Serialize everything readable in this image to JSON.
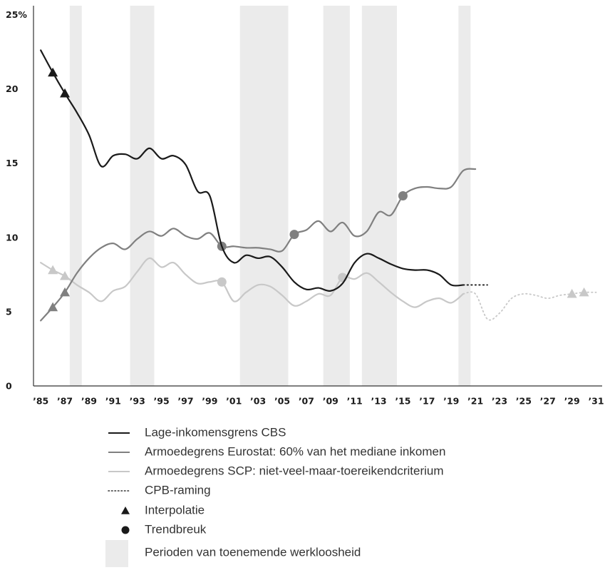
{
  "chart_data": {
    "type": "line",
    "xlim": [
      1984.4,
      2031.5
    ],
    "xticks": [
      {
        "value": 1985,
        "label": "’85"
      },
      {
        "value": 1987,
        "label": "’87"
      },
      {
        "value": 1989,
        "label": "’89"
      },
      {
        "value": 1991,
        "label": "’91"
      },
      {
        "value": 1993,
        "label": "’93"
      },
      {
        "value": 1995,
        "label": "’95"
      },
      {
        "value": 1997,
        "label": "’97"
      },
      {
        "value": 1999,
        "label": "’99"
      },
      {
        "value": 2001,
        "label": "’01"
      },
      {
        "value": 2003,
        "label": "’03"
      },
      {
        "value": 2005,
        "label": "’05"
      },
      {
        "value": 2007,
        "label": "’07"
      },
      {
        "value": 2009,
        "label": "’09"
      },
      {
        "value": 2011,
        "label": "’11"
      },
      {
        "value": 2013,
        "label": "’13"
      },
      {
        "value": 2015,
        "label": "’15"
      },
      {
        "value": 2017,
        "label": "’17"
      },
      {
        "value": 2019,
        "label": "’19"
      },
      {
        "value": 2021,
        "label": "’21"
      },
      {
        "value": 2023,
        "label": "’23"
      },
      {
        "value": 2025,
        "label": "’25"
      },
      {
        "value": 2027,
        "label": "’27"
      },
      {
        "value": 2029,
        "label": "’29"
      },
      {
        "value": 2031,
        "label": "’31"
      }
    ],
    "ylim": [
      0,
      25.6
    ],
    "yticks": [
      0,
      5,
      10,
      15,
      20,
      {
        "value": 25,
        "label": "25%"
      }
    ],
    "shading": {
      "name": "Perioden van toenemende werkloosheid",
      "color": "#ebebeb",
      "periods": [
        [
          1987.4,
          1988.4
        ],
        [
          1992.4,
          1994.4
        ],
        [
          2001.5,
          2005.5
        ],
        [
          2008.4,
          2010.6
        ],
        [
          2011.6,
          2014.5
        ],
        [
          2019.6,
          2020.6
        ]
      ]
    },
    "series": [
      {
        "name": "Lage-inkomensgrens CBS",
        "color": "#1a1a1a",
        "x": [
          1985,
          1986,
          1987,
          1988,
          1989,
          1990,
          1991,
          1992,
          1993,
          1994,
          1995,
          1996,
          1997,
          1998,
          1999,
          2000,
          2001,
          2002,
          2003,
          2004,
          2005,
          2006,
          2007,
          2008,
          2009,
          2010,
          2011,
          2012,
          2013,
          2014,
          2015,
          2016,
          2017,
          2018,
          2019,
          2020
        ],
        "values": [
          22.6,
          21.1,
          19.7,
          18.4,
          16.9,
          14.8,
          15.5,
          15.6,
          15.3,
          16.0,
          15.3,
          15.5,
          14.9,
          13.1,
          12.8,
          9.4,
          8.3,
          8.8,
          8.6,
          8.7,
          8.0,
          7.0,
          6.5,
          6.6,
          6.4,
          6.9,
          8.3,
          8.9,
          8.6,
          8.2,
          7.9,
          7.8,
          7.8,
          7.5,
          6.8,
          6.8
        ],
        "interpolation": {
          "x": [
            1986,
            1987
          ],
          "values": [
            21.1,
            19.7
          ]
        },
        "trend_breaks": {
          "x": [],
          "values": []
        }
      },
      {
        "name": "Armoedegrens Eurostat: 60% van het mediane inkomen",
        "color": "#808080",
        "x": [
          1985,
          1986,
          1987,
          1988,
          1989,
          1990,
          1991,
          1992,
          1993,
          1994,
          1995,
          1996,
          1997,
          1998,
          1999,
          2000,
          2001,
          2002,
          2003,
          2004,
          2005,
          2006,
          2007,
          2008,
          2009,
          2010,
          2011,
          2012,
          2013,
          2014,
          2015,
          2016,
          2017,
          2018,
          2019,
          2020,
          2021
        ],
        "values": [
          4.4,
          5.3,
          6.3,
          7.6,
          8.6,
          9.3,
          9.6,
          9.2,
          9.9,
          10.4,
          10.1,
          10.6,
          10.1,
          9.9,
          10.3,
          9.4,
          9.4,
          9.3,
          9.3,
          9.2,
          9.1,
          10.2,
          10.5,
          11.1,
          10.4,
          11.0,
          10.1,
          10.4,
          11.7,
          11.5,
          12.8,
          13.3,
          13.4,
          13.3,
          13.4,
          14.5,
          14.6
        ],
        "interpolation": {
          "x": [
            1986,
            1987
          ],
          "values": [
            5.3,
            6.3
          ]
        },
        "trend_breaks": {
          "x": [
            2000,
            2006,
            2015
          ],
          "values": [
            9.4,
            10.2,
            12.8
          ]
        }
      },
      {
        "name": "Armoedegrens SCP: niet-veel-maar-toereikendcriterium",
        "color": "#c8c8c8",
        "x": [
          1985,
          1986,
          1987,
          1988,
          1989,
          1990,
          1991,
          1992,
          1993,
          1994,
          1995,
          1996,
          1997,
          1998,
          1999,
          2000,
          2001,
          2002,
          2003,
          2004,
          2005,
          2006,
          2007,
          2008,
          2009,
          2010,
          2011,
          2012,
          2013,
          2014,
          2015,
          2016,
          2017,
          2018,
          2019,
          2020
        ],
        "values": [
          8.3,
          7.8,
          7.4,
          6.8,
          6.3,
          5.7,
          6.4,
          6.7,
          7.7,
          8.6,
          8.0,
          8.3,
          7.5,
          6.9,
          7.0,
          7.0,
          5.7,
          6.3,
          6.8,
          6.7,
          6.1,
          5.4,
          5.7,
          6.2,
          6.1,
          7.3,
          7.2,
          7.6,
          7.0,
          6.3,
          5.7,
          5.3,
          5.7,
          5.9,
          5.6,
          6.2
        ],
        "interpolation": {
          "x": [
            1986,
            1987
          ],
          "values": [
            7.8,
            7.4
          ]
        },
        "trend_breaks": {
          "x": [
            2000,
            2010
          ],
          "values": [
            7.0,
            7.3
          ]
        }
      }
    ],
    "forecast": {
      "name": "CPB-raming",
      "series": [
        {
          "color": "#1a1a1a",
          "x": [
            2020,
            2021,
            2022
          ],
          "values": [
            6.8,
            6.8,
            6.8
          ],
          "interpolation": {
            "x": [],
            "values": []
          }
        },
        {
          "color": "#c8c8c8",
          "x": [
            2020,
            2021,
            2022,
            2023,
            2024,
            2025,
            2026,
            2027,
            2028,
            2029,
            2030,
            2031
          ],
          "values": [
            6.2,
            6.2,
            4.5,
            4.9,
            5.9,
            6.2,
            6.1,
            5.9,
            6.1,
            6.2,
            6.3,
            6.3
          ],
          "interpolation": {
            "x": [
              2029,
              2030
            ],
            "values": [
              6.2,
              6.3
            ]
          }
        }
      ]
    },
    "interpolation_label": "Interpolatie",
    "trend_break_label": "Trendbreuk"
  }
}
